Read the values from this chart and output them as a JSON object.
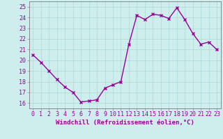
{
  "x": [
    0,
    1,
    2,
    3,
    4,
    5,
    6,
    7,
    8,
    9,
    10,
    11,
    12,
    13,
    14,
    15,
    16,
    17,
    18,
    19,
    20,
    21,
    22,
    23
  ],
  "y": [
    20.5,
    19.8,
    19.0,
    18.2,
    17.5,
    17.0,
    16.1,
    16.2,
    16.3,
    17.4,
    17.7,
    18.0,
    21.5,
    24.2,
    23.8,
    24.3,
    24.2,
    23.9,
    24.9,
    23.8,
    22.5,
    21.5,
    21.7,
    21.0
  ],
  "line_color": "#990099",
  "marker": "x",
  "markersize": 3,
  "markeredgewidth": 1.0,
  "linewidth": 1.0,
  "bg_color": "#ceeeed",
  "grid_color": "#aed8d8",
  "xlabel": "Windchill (Refroidissement éolien,°C)",
  "xlabel_fontsize": 6.5,
  "ylabel_ticks": [
    16,
    17,
    18,
    19,
    20,
    21,
    22,
    23,
    24,
    25
  ],
  "xlim": [
    -0.5,
    23.5
  ],
  "ylim": [
    15.5,
    25.5
  ],
  "xtick_labels": [
    "0",
    "1",
    "2",
    "3",
    "4",
    "5",
    "6",
    "7",
    "8",
    "9",
    "10",
    "11",
    "12",
    "13",
    "14",
    "15",
    "16",
    "17",
    "18",
    "19",
    "20",
    "21",
    "22",
    "23"
  ],
  "tick_fontsize": 6,
  "tick_color": "#990099",
  "spine_color": "#888888"
}
